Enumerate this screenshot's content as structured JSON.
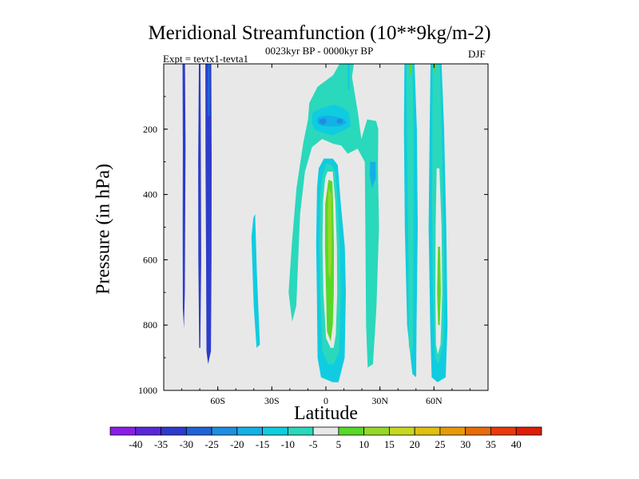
{
  "chart_data": {
    "type": "heatmap",
    "title": "Meridional Streamfunction (10**9kg/m-2)",
    "subtitle": "0023kyr BP - 0000kyr BP",
    "left_label": "Expt = tevtx1-tevta1",
    "right_label": "DJF",
    "xlabel": "Latitude",
    "ylabel": "Pressure (in hPa)",
    "x_range": [
      -90,
      90
    ],
    "y_range": [
      0,
      1000
    ],
    "y_inverted": true,
    "x_ticks": [
      {
        "value": -60,
        "label": "60S"
      },
      {
        "value": -30,
        "label": "30S"
      },
      {
        "value": 0,
        "label": "0"
      },
      {
        "value": 30,
        "label": "30N"
      },
      {
        "value": 60,
        "label": "60N"
      }
    ],
    "y_ticks": [
      {
        "value": 200,
        "label": "200"
      },
      {
        "value": 400,
        "label": "400"
      },
      {
        "value": 600,
        "label": "600"
      },
      {
        "value": 800,
        "label": "800"
      },
      {
        "value": 1000,
        "label": "1000"
      }
    ],
    "background_color": "#e8e8e8",
    "colorbar": {
      "levels": [
        "-40",
        "-35",
        "-30",
        "-25",
        "-20",
        "-15",
        "-10",
        "-5",
        "5",
        "10",
        "15",
        "20",
        "25",
        "30",
        "35",
        "40"
      ],
      "colors": [
        "#8a1ee6",
        "#5a28d8",
        "#2c3ccc",
        "#1f64d6",
        "#1e8ee0",
        "#14b0e8",
        "#10cce0",
        "#2ad8bc",
        "#e8e8e8",
        "#58d828",
        "#96d828",
        "#c8d820",
        "#e0c010",
        "#e69a0a",
        "#e86c0a",
        "#e83a0a",
        "#dc1e06"
      ]
    },
    "fields": [
      {
        "name": "column-a",
        "level": 2,
        "points": [
          [
            -79.6,
            0
          ],
          [
            -78.2,
            0
          ],
          [
            -77.9,
            250
          ],
          [
            -78.1,
            500
          ],
          [
            -78.3,
            700
          ],
          [
            -78.8,
            810
          ],
          [
            -79.4,
            750
          ],
          [
            -79.5,
            500
          ],
          [
            -79.4,
            250
          ]
        ]
      },
      {
        "name": "column-b",
        "level": 2,
        "points": [
          [
            -70.5,
            0
          ],
          [
            -69.6,
            0
          ],
          [
            -69.4,
            300
          ],
          [
            -69.2,
            600
          ],
          [
            -69.7,
            870
          ],
          [
            -70.3,
            870
          ],
          [
            -70.8,
            600
          ],
          [
            -70.9,
            300
          ]
        ]
      },
      {
        "name": "column-c",
        "level": 2,
        "points": [
          [
            -66.9,
            0
          ],
          [
            -63.6,
            0
          ],
          [
            -63.4,
            300
          ],
          [
            -63.5,
            600
          ],
          [
            -63.8,
            880
          ],
          [
            -65.4,
            920
          ],
          [
            -66.3,
            880
          ],
          [
            -66.5,
            600
          ],
          [
            -66.8,
            300
          ]
        ]
      },
      {
        "name": "column-c-core",
        "level": 3,
        "points": [
          [
            -65.6,
            0
          ],
          [
            -64.4,
            0
          ],
          [
            -64.4,
            120
          ],
          [
            -64.6,
            160
          ],
          [
            -65.5,
            160
          ],
          [
            -65.7,
            120
          ]
        ]
      },
      {
        "name": "column-d",
        "level": 6,
        "points": [
          [
            -39.3,
            460
          ],
          [
            -38.3,
            640
          ],
          [
            -36.6,
            860
          ],
          [
            -38.5,
            870
          ],
          [
            -40.1,
            740
          ],
          [
            -41.3,
            530
          ],
          [
            -40.2,
            470
          ]
        ]
      },
      {
        "name": "column-e",
        "level": 6,
        "points": [
          [
            -1.1,
            290
          ],
          [
            3.8,
            290
          ],
          [
            6.6,
            310
          ],
          [
            8.3,
            430
          ],
          [
            10.5,
            560
          ],
          [
            11.1,
            700
          ],
          [
            10.4,
            900
          ],
          [
            7,
            975
          ],
          [
            3.8,
            975
          ],
          [
            -2.7,
            960
          ],
          [
            -4.6,
            900
          ],
          [
            -5,
            700
          ],
          [
            -5.4,
            550
          ],
          [
            -4.9,
            380
          ],
          [
            -4,
            320
          ]
        ]
      },
      {
        "name": "column-e-l2",
        "level": 7,
        "points": [
          [
            0.5,
            305
          ],
          [
            3.3,
            310
          ],
          [
            5.4,
            335
          ],
          [
            6.6,
            430
          ],
          [
            7.7,
            560
          ],
          [
            8.3,
            700
          ],
          [
            7.4,
            880
          ],
          [
            4.4,
            920
          ],
          [
            1.2,
            920
          ],
          [
            -1.9,
            880
          ],
          [
            -3.2,
            700
          ],
          [
            -3.7,
            550
          ],
          [
            -3.1,
            400
          ],
          [
            -1.9,
            340
          ]
        ]
      },
      {
        "name": "column-e-l3",
        "level": 8,
        "points": [
          [
            0.9,
            330
          ],
          [
            3.8,
            330
          ],
          [
            5.2,
            420
          ],
          [
            6.1,
            560
          ],
          [
            6.3,
            700
          ],
          [
            5.5,
            830
          ],
          [
            4.3,
            870
          ],
          [
            2.6,
            870
          ],
          [
            0.1,
            840
          ],
          [
            -1.4,
            700
          ],
          [
            -1.9,
            550
          ],
          [
            -1.6,
            420
          ],
          [
            -0.4,
            350
          ]
        ]
      },
      {
        "name": "column-e-l4",
        "level": 9,
        "points": [
          [
            1.4,
            355
          ],
          [
            3.6,
            360
          ],
          [
            4.1,
            450
          ],
          [
            4.5,
            560
          ],
          [
            4.4,
            700
          ],
          [
            3.8,
            800
          ],
          [
            2.7,
            850
          ],
          [
            0.6,
            820
          ],
          [
            0.1,
            700
          ],
          [
            -0.5,
            560
          ],
          [
            -0.4,
            430
          ]
        ]
      },
      {
        "name": "column-e-l5",
        "level": 10,
        "points": [
          [
            1.5,
            380
          ],
          [
            3.0,
            400
          ],
          [
            3.2,
            500
          ],
          [
            3.1,
            600
          ],
          [
            2.5,
            660
          ],
          [
            1.4,
            640
          ],
          [
            1.1,
            540
          ],
          [
            1.0,
            450
          ]
        ]
      },
      {
        "name": "column-f",
        "level": 6,
        "points": [
          [
            43.6,
            0
          ],
          [
            49.2,
            0
          ],
          [
            50.5,
            200
          ],
          [
            51.0,
            500
          ],
          [
            50.3,
            800
          ],
          [
            50.1,
            960
          ],
          [
            48.0,
            950
          ],
          [
            45.1,
            800
          ],
          [
            43.8,
            500
          ],
          [
            43.3,
            200
          ]
        ]
      },
      {
        "name": "column-f-l2",
        "level": 7,
        "points": [
          [
            44.7,
            0
          ],
          [
            48.0,
            0
          ],
          [
            48.8,
            250
          ],
          [
            48.6,
            600
          ],
          [
            48.3,
            860
          ],
          [
            47.2,
            900
          ],
          [
            46.0,
            860
          ],
          [
            45.8,
            600
          ],
          [
            45.0,
            250
          ]
        ]
      },
      {
        "name": "column-g",
        "level": 6,
        "points": [
          [
            58.1,
            0
          ],
          [
            64.2,
            0
          ],
          [
            65.6,
            200
          ],
          [
            66.8,
            500
          ],
          [
            67.5,
            800
          ],
          [
            66.5,
            960
          ],
          [
            62.0,
            975
          ],
          [
            58.7,
            960
          ],
          [
            57.9,
            800
          ],
          [
            57.0,
            500
          ],
          [
            57.6,
            200
          ]
        ]
      },
      {
        "name": "column-g-l2",
        "level": 7,
        "points": [
          [
            59.3,
            0
          ],
          [
            63.2,
            0
          ],
          [
            64.7,
            300
          ],
          [
            65.6,
            600
          ],
          [
            65.4,
            840
          ],
          [
            62.6,
            920
          ],
          [
            60.6,
            900
          ],
          [
            59.4,
            700
          ],
          [
            58.9,
            400
          ]
        ]
      },
      {
        "name": "column-g-l3",
        "level": 8,
        "points": [
          [
            61.5,
            320
          ],
          [
            63.0,
            320
          ],
          [
            64.2,
            500
          ],
          [
            64.6,
            700
          ],
          [
            63.6,
            860
          ],
          [
            62.1,
            890
          ],
          [
            61.1,
            860
          ],
          [
            60.8,
            700
          ],
          [
            60.9,
            500
          ]
        ]
      },
      {
        "name": "column-g-l4",
        "level": 9,
        "points": [
          [
            62.2,
            560
          ],
          [
            63.4,
            560
          ],
          [
            63.8,
            700
          ],
          [
            63.2,
            800
          ],
          [
            62.3,
            800
          ],
          [
            61.7,
            700
          ]
        ]
      },
      {
        "name": "negative-plume",
        "level": 7,
        "points": [
          [
            -9.2,
            120
          ],
          [
            -4.6,
            70
          ],
          [
            4,
            35
          ],
          [
            7.6,
            0
          ],
          [
            15.5,
            0
          ],
          [
            14.5,
            40
          ],
          [
            17.8,
            150
          ],
          [
            19.7,
            230
          ],
          [
            22.9,
            170
          ],
          [
            27.9,
            175
          ],
          [
            29.1,
            200
          ],
          [
            28.9,
            320
          ],
          [
            29.5,
            500
          ],
          [
            28.0,
            750
          ],
          [
            26.1,
            920
          ],
          [
            23.2,
            930
          ],
          [
            22.3,
            800
          ],
          [
            21.9,
            500
          ],
          [
            21.6,
            300
          ],
          [
            17.6,
            260
          ],
          [
            12.1,
            275
          ],
          [
            8.5,
            250
          ],
          [
            4.3,
            245
          ],
          [
            -2.1,
            230
          ],
          [
            -7.7,
            255
          ],
          [
            -11.6,
            330
          ],
          [
            -14.3,
            460
          ],
          [
            -15.4,
            600
          ],
          [
            -16.4,
            740
          ],
          [
            -18.7,
            790
          ],
          [
            -20.7,
            700
          ],
          [
            -18.9,
            550
          ],
          [
            -16.3,
            380
          ],
          [
            -12.5,
            240
          ],
          [
            -9.9,
            170
          ]
        ]
      },
      {
        "name": "negative-plume-l2",
        "level": 6,
        "points": [
          [
            -7.4,
            150
          ],
          [
            -2.2,
            135
          ],
          [
            4.8,
            125
          ],
          [
            9.6,
            135
          ],
          [
            12.9,
            150
          ],
          [
            13.8,
            190
          ],
          [
            9.8,
            205
          ],
          [
            4.1,
            218
          ],
          [
            -0.8,
            213
          ],
          [
            -6.1,
            202
          ],
          [
            -7.9,
            180
          ]
        ]
      },
      {
        "name": "negative-plume-l3",
        "level": 5,
        "points": [
          [
            -4.5,
            163
          ],
          [
            -0.6,
            158
          ],
          [
            4.1,
            160
          ],
          [
            9.6,
            168
          ],
          [
            11.8,
            180
          ],
          [
            8.7,
            190
          ],
          [
            2.7,
            192
          ],
          [
            -2.3,
            190
          ],
          [
            -5.0,
            180
          ]
        ]
      },
      {
        "name": "negative-plume-l4",
        "level": 4,
        "points": [
          [
            -3.6,
            170
          ],
          [
            -0.4,
            166
          ],
          [
            0.5,
            178
          ],
          [
            -1.0,
            186
          ],
          [
            -3.8,
            183
          ]
        ]
      },
      {
        "name": "negative-plume-l4b",
        "level": 4,
        "points": [
          [
            6.6,
            168
          ],
          [
            9.2,
            170
          ],
          [
            9.6,
            180
          ],
          [
            7.5,
            184
          ],
          [
            5.8,
            178
          ]
        ]
      },
      {
        "name": "negative-plume-l5",
        "level": 5,
        "points": [
          [
            24.6,
            300
          ],
          [
            27.6,
            300
          ],
          [
            27.7,
            350
          ],
          [
            25.6,
            380
          ],
          [
            24.3,
            340
          ]
        ]
      },
      {
        "name": "top-strip",
        "level": 7,
        "points": [
          [
            11.6,
            0
          ],
          [
            13.6,
            0
          ],
          [
            13.7,
            120
          ],
          [
            11.9,
            120
          ]
        ]
      },
      {
        "name": "top-strip-core",
        "level": 6,
        "points": [
          [
            12.0,
            0
          ],
          [
            13.3,
            0
          ],
          [
            13.2,
            80
          ],
          [
            12.2,
            80
          ]
        ]
      },
      {
        "name": "top-strip-green",
        "level": 9,
        "points": [
          [
            46.5,
            0
          ],
          [
            47.4,
            0
          ],
          [
            47.5,
            30
          ],
          [
            46.6,
            30
          ]
        ]
      },
      {
        "name": "top-strip-green2",
        "level": 9,
        "points": [
          [
            60.0,
            0
          ],
          [
            61.0,
            0
          ],
          [
            61.1,
            25
          ],
          [
            60.1,
            25
          ]
        ]
      }
    ]
  }
}
